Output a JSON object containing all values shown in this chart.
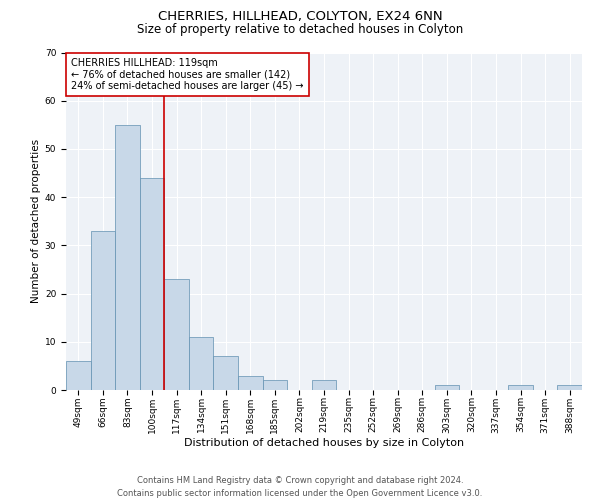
{
  "title": "CHERRIES, HILLHEAD, COLYTON, EX24 6NN",
  "subtitle": "Size of property relative to detached houses in Colyton",
  "xlabel": "Distribution of detached houses by size in Colyton",
  "ylabel": "Number of detached properties",
  "categories": [
    "49sqm",
    "66sqm",
    "83sqm",
    "100sqm",
    "117sqm",
    "134sqm",
    "151sqm",
    "168sqm",
    "185sqm",
    "202sqm",
    "219sqm",
    "235sqm",
    "252sqm",
    "269sqm",
    "286sqm",
    "303sqm",
    "320sqm",
    "337sqm",
    "354sqm",
    "371sqm",
    "388sqm"
  ],
  "values": [
    6,
    33,
    55,
    44,
    23,
    11,
    7,
    3,
    2,
    0,
    2,
    0,
    0,
    0,
    0,
    1,
    0,
    0,
    1,
    0,
    1
  ],
  "bar_color": "#c8d8e8",
  "bar_edge_color": "#6090b0",
  "bar_edge_width": 0.5,
  "red_line_color": "#cc0000",
  "ylim": [
    0,
    70
  ],
  "yticks": [
    0,
    10,
    20,
    30,
    40,
    50,
    60,
    70
  ],
  "annotation_text": "CHERRIES HILLHEAD: 119sqm\n← 76% of detached houses are smaller (142)\n24% of semi-detached houses are larger (45) →",
  "annotation_box_color": "white",
  "annotation_box_edge": "#cc0000",
  "bg_color": "#eef2f7",
  "footer_text": "Contains HM Land Registry data © Crown copyright and database right 2024.\nContains public sector information licensed under the Open Government Licence v3.0.",
  "title_fontsize": 9.5,
  "subtitle_fontsize": 8.5,
  "xlabel_fontsize": 8,
  "ylabel_fontsize": 7.5,
  "tick_fontsize": 6.5,
  "annotation_fontsize": 7,
  "footer_fontsize": 6
}
